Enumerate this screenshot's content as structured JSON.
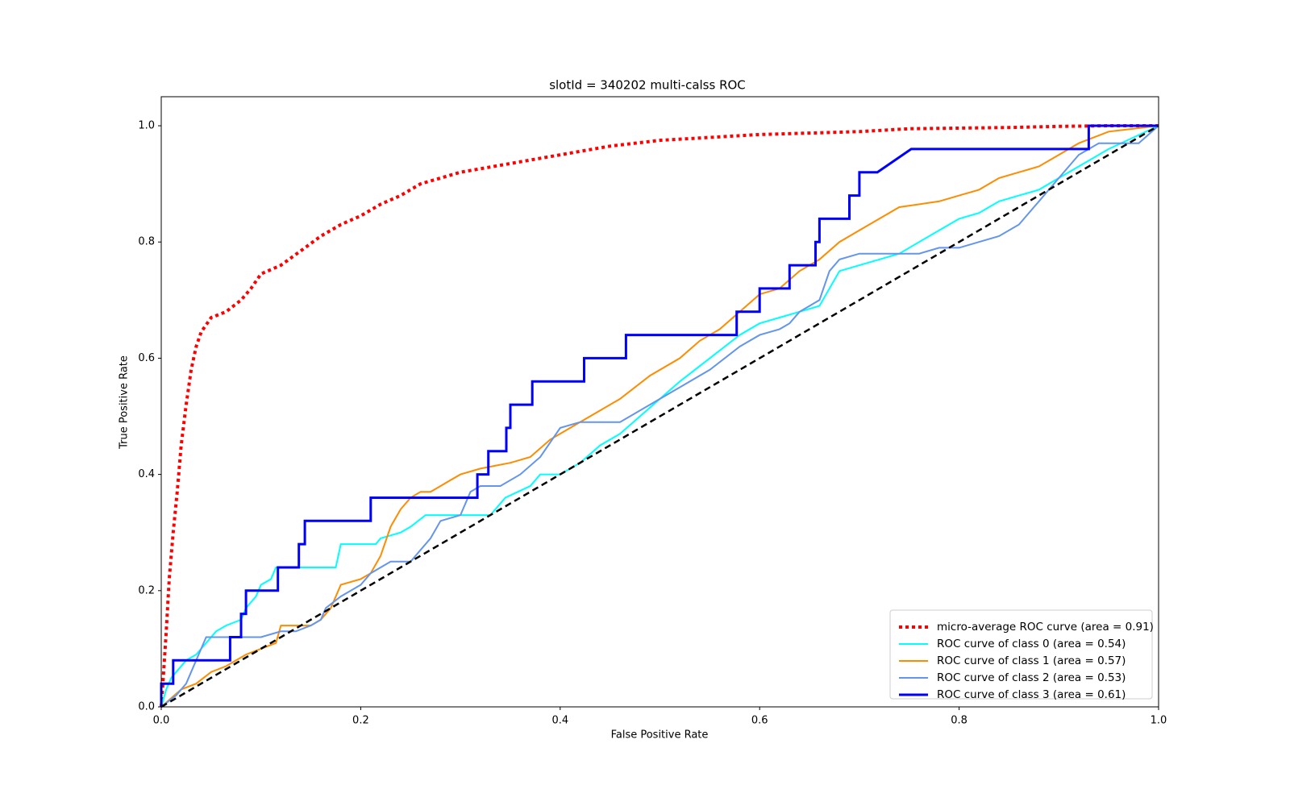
{
  "chart_data": {
    "type": "line",
    "title": "slotId = 340202 multi-calss ROC",
    "xlabel": "False Positive Rate",
    "ylabel": "True Positive Rate",
    "xlim": [
      0.0,
      1.0
    ],
    "ylim": [
      0.0,
      1.05
    ],
    "xticks": [
      0.0,
      0.2,
      0.4,
      0.6,
      0.8,
      1.0
    ],
    "xtick_labels": [
      "0.0",
      "0.2",
      "0.4",
      "0.6",
      "0.8",
      "1.0"
    ],
    "yticks": [
      0.0,
      0.2,
      0.4,
      0.6,
      0.8,
      1.0
    ],
    "ytick_labels": [
      "0.0",
      "0.2",
      "0.4",
      "0.6",
      "0.8",
      "1.0"
    ],
    "grid": false,
    "legend_position": "lower-right",
    "series": [
      {
        "name": "micro-average ROC curve (area = 0.91)",
        "color": "#ff0000",
        "style": "dotted",
        "width": 4,
        "x": [
          0.0,
          0.002,
          0.005,
          0.008,
          0.012,
          0.016,
          0.02,
          0.025,
          0.03,
          0.035,
          0.04,
          0.05,
          0.065,
          0.08,
          0.09,
          0.1,
          0.12,
          0.14,
          0.16,
          0.18,
          0.2,
          0.22,
          0.24,
          0.26,
          0.3,
          0.35,
          0.4,
          0.45,
          0.5,
          0.55,
          0.6,
          0.7,
          0.75,
          0.85,
          0.9,
          0.95,
          1.0
        ],
        "y": [
          0.0,
          0.05,
          0.13,
          0.22,
          0.3,
          0.37,
          0.45,
          0.52,
          0.58,
          0.62,
          0.645,
          0.67,
          0.68,
          0.7,
          0.72,
          0.745,
          0.76,
          0.785,
          0.81,
          0.83,
          0.845,
          0.865,
          0.88,
          0.9,
          0.92,
          0.935,
          0.95,
          0.965,
          0.975,
          0.98,
          0.985,
          0.99,
          0.995,
          0.997,
          0.999,
          1.0,
          1.0
        ]
      },
      {
        "name": "ROC curve of class 0 (area = 0.54)",
        "color": "#00ffff",
        "style": "solid",
        "width": 2,
        "x": [
          0.0,
          0.005,
          0.01,
          0.015,
          0.025,
          0.035,
          0.045,
          0.05,
          0.055,
          0.065,
          0.08,
          0.085,
          0.095,
          0.1,
          0.11,
          0.115,
          0.13,
          0.175,
          0.18,
          0.215,
          0.22,
          0.24,
          0.25,
          0.265,
          0.28,
          0.29,
          0.33,
          0.345,
          0.37,
          0.38,
          0.4,
          0.42,
          0.44,
          0.46,
          0.48,
          0.5,
          0.52,
          0.55,
          0.58,
          0.6,
          0.62,
          0.64,
          0.66,
          0.68,
          0.7,
          0.72,
          0.74,
          0.76,
          0.78,
          0.8,
          0.82,
          0.84,
          0.86,
          0.88,
          0.9,
          0.92,
          0.95,
          1.0
        ],
        "y": [
          0.0,
          0.03,
          0.05,
          0.06,
          0.08,
          0.09,
          0.11,
          0.12,
          0.13,
          0.14,
          0.15,
          0.17,
          0.19,
          0.21,
          0.22,
          0.24,
          0.24,
          0.24,
          0.28,
          0.28,
          0.29,
          0.3,
          0.31,
          0.33,
          0.33,
          0.33,
          0.33,
          0.36,
          0.38,
          0.4,
          0.4,
          0.42,
          0.45,
          0.47,
          0.5,
          0.53,
          0.56,
          0.6,
          0.64,
          0.66,
          0.67,
          0.68,
          0.69,
          0.75,
          0.76,
          0.77,
          0.78,
          0.8,
          0.82,
          0.84,
          0.85,
          0.87,
          0.88,
          0.89,
          0.91,
          0.93,
          0.96,
          1.0
        ]
      },
      {
        "name": "ROC curve of class 1 (area = 0.57)",
        "color": "#ff8c00",
        "style": "solid",
        "width": 2,
        "x": [
          0.0,
          0.02,
          0.035,
          0.05,
          0.065,
          0.075,
          0.085,
          0.1,
          0.115,
          0.12,
          0.15,
          0.16,
          0.17,
          0.175,
          0.18,
          0.2,
          0.21,
          0.22,
          0.23,
          0.24,
          0.25,
          0.26,
          0.27,
          0.28,
          0.29,
          0.3,
          0.32,
          0.35,
          0.37,
          0.39,
          0.41,
          0.43,
          0.46,
          0.49,
          0.52,
          0.54,
          0.56,
          0.58,
          0.6,
          0.62,
          0.64,
          0.66,
          0.68,
          0.7,
          0.72,
          0.74,
          0.78,
          0.8,
          0.82,
          0.84,
          0.86,
          0.88,
          0.9,
          0.92,
          0.95,
          1.0
        ],
        "y": [
          0.0,
          0.03,
          0.04,
          0.06,
          0.07,
          0.08,
          0.09,
          0.1,
          0.11,
          0.14,
          0.14,
          0.15,
          0.17,
          0.19,
          0.21,
          0.22,
          0.23,
          0.26,
          0.31,
          0.34,
          0.36,
          0.37,
          0.37,
          0.38,
          0.39,
          0.4,
          0.41,
          0.42,
          0.43,
          0.46,
          0.48,
          0.5,
          0.53,
          0.57,
          0.6,
          0.63,
          0.65,
          0.68,
          0.71,
          0.72,
          0.75,
          0.77,
          0.8,
          0.82,
          0.84,
          0.86,
          0.87,
          0.88,
          0.89,
          0.91,
          0.92,
          0.93,
          0.95,
          0.97,
          0.99,
          1.0
        ]
      },
      {
        "name": "ROC curve of class 2 (area = 0.53)",
        "color": "#6495ed",
        "style": "solid",
        "width": 2,
        "x": [
          0.0,
          0.015,
          0.025,
          0.03,
          0.035,
          0.04,
          0.045,
          0.06,
          0.07,
          0.1,
          0.12,
          0.135,
          0.15,
          0.16,
          0.165,
          0.18,
          0.2,
          0.21,
          0.22,
          0.23,
          0.25,
          0.26,
          0.27,
          0.28,
          0.3,
          0.31,
          0.32,
          0.34,
          0.36,
          0.38,
          0.4,
          0.42,
          0.44,
          0.46,
          0.5,
          0.52,
          0.55,
          0.58,
          0.6,
          0.62,
          0.63,
          0.64,
          0.65,
          0.66,
          0.67,
          0.68,
          0.7,
          0.72,
          0.74,
          0.76,
          0.78,
          0.8,
          0.82,
          0.84,
          0.86,
          0.88,
          0.9,
          0.92,
          0.94,
          0.96,
          0.98,
          1.0
        ],
        "y": [
          0.0,
          0.02,
          0.04,
          0.06,
          0.08,
          0.1,
          0.12,
          0.12,
          0.12,
          0.12,
          0.13,
          0.13,
          0.14,
          0.15,
          0.17,
          0.19,
          0.21,
          0.23,
          0.24,
          0.25,
          0.25,
          0.27,
          0.29,
          0.32,
          0.33,
          0.37,
          0.38,
          0.38,
          0.4,
          0.43,
          0.48,
          0.49,
          0.49,
          0.49,
          0.53,
          0.55,
          0.58,
          0.62,
          0.64,
          0.65,
          0.66,
          0.68,
          0.69,
          0.7,
          0.75,
          0.77,
          0.78,
          0.78,
          0.78,
          0.78,
          0.79,
          0.79,
          0.8,
          0.81,
          0.83,
          0.87,
          0.91,
          0.95,
          0.97,
          0.97,
          0.97,
          1.0
        ]
      },
      {
        "name": "ROC curve of class 3 (area = 0.61)",
        "color": "#0000ff",
        "style": "solid",
        "width": 3,
        "x": [
          0.0,
          0.0,
          0.012,
          0.012,
          0.069,
          0.069,
          0.08,
          0.08,
          0.085,
          0.085,
          0.117,
          0.117,
          0.138,
          0.138,
          0.144,
          0.144,
          0.21,
          0.21,
          0.317,
          0.317,
          0.328,
          0.328,
          0.346,
          0.346,
          0.35,
          0.35,
          0.372,
          0.372,
          0.424,
          0.424,
          0.466,
          0.466,
          0.577,
          0.577,
          0.6,
          0.6,
          0.63,
          0.63,
          0.656,
          0.656,
          0.66,
          0.66,
          0.666,
          0.666,
          0.69,
          0.69,
          0.7,
          0.7,
          0.718,
          0.718,
          0.752,
          0.752,
          0.93,
          0.93,
          1.0
        ],
        "y": [
          0.0,
          0.04,
          0.04,
          0.08,
          0.08,
          0.12,
          0.12,
          0.16,
          0.16,
          0.2,
          0.2,
          0.24,
          0.24,
          0.28,
          0.28,
          0.32,
          0.32,
          0.36,
          0.36,
          0.4,
          0.4,
          0.44,
          0.44,
          0.48,
          0.48,
          0.52,
          0.52,
          0.56,
          0.56,
          0.6,
          0.6,
          0.64,
          0.64,
          0.68,
          0.68,
          0.72,
          0.72,
          0.76,
          0.76,
          0.8,
          0.8,
          0.84,
          0.84,
          0.84,
          0.84,
          0.88,
          0.88,
          0.92,
          0.92,
          0.92,
          0.96,
          0.96,
          0.96,
          1.0,
          1.0
        ]
      },
      {
        "name": "chance",
        "color": "#000000",
        "style": "dashed",
        "width": 2.5,
        "legend": false,
        "x": [
          0.0,
          1.0
        ],
        "y": [
          0.0,
          1.0
        ]
      }
    ]
  }
}
